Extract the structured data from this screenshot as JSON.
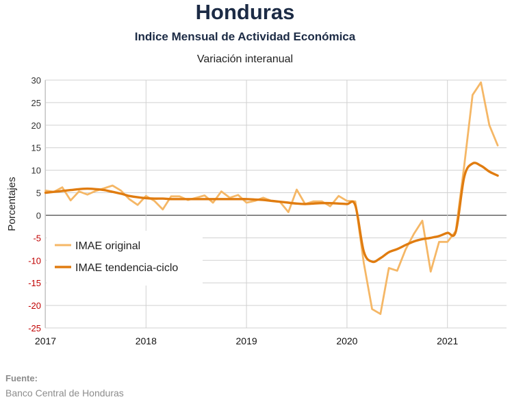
{
  "header": {
    "title": "Honduras",
    "subtitle": "Indice Mensual de  Actividad Económica",
    "subtitle2": "Variación interanual"
  },
  "footer": {
    "source_label": "Fuente:",
    "source_value": "Banco Central de Honduras"
  },
  "colors": {
    "original": "#f5b766",
    "trend": "#e07c10",
    "grid": "#d0d0d0",
    "zero_line": "#555555",
    "negative_tick": "#c00000"
  },
  "chart_data": {
    "type": "line",
    "title": "Honduras",
    "subtitle": "Indice Mensual de  Actividad Económica",
    "subtitle2": "Variación interanual",
    "xlabel": "",
    "ylabel": "Porcentajes",
    "ylim": [
      -25,
      30
    ],
    "yticks": [
      -25,
      -20,
      -15,
      -10,
      -5,
      0,
      5,
      10,
      15,
      20,
      25,
      30
    ],
    "xticks": [
      "2017",
      "2018",
      "2019",
      "2020",
      "2021"
    ],
    "grid": true,
    "legend_position": "left-center",
    "x_start": "2017-01",
    "x_end": "2021-07",
    "series": [
      {
        "name": "IMAE original",
        "values": [
          5.5,
          5.2,
          6.2,
          3.3,
          5.3,
          4.6,
          5.4,
          6.0,
          6.6,
          5.5,
          3.6,
          2.3,
          4.3,
          3.2,
          1.3,
          4.2,
          4.2,
          3.4,
          3.9,
          4.4,
          2.8,
          5.3,
          3.9,
          4.5,
          2.8,
          3.2,
          3.9,
          3.2,
          3.0,
          0.7,
          5.7,
          2.5,
          3.1,
          3.1,
          2.0,
          4.3,
          3.2,
          3.1,
          -10.5,
          -20.8,
          -21.9,
          -11.7,
          -12.3,
          -7.6,
          -4.1,
          -1.2,
          -12.5,
          -5.9,
          -5.9,
          -3.5,
          11.0,
          26.7,
          29.5,
          20.0,
          15.5
        ]
      },
      {
        "name": "IMAE tendencia-ciclo",
        "values": [
          5.0,
          5.2,
          5.4,
          5.6,
          5.8,
          5.9,
          5.8,
          5.6,
          5.2,
          4.8,
          4.3,
          4.0,
          3.8,
          3.7,
          3.7,
          3.6,
          3.6,
          3.6,
          3.6,
          3.6,
          3.6,
          3.6,
          3.6,
          3.6,
          3.6,
          3.5,
          3.4,
          3.2,
          3.0,
          2.8,
          2.6,
          2.5,
          2.6,
          2.7,
          2.7,
          2.6,
          2.5,
          2.2,
          -8.0,
          -10.3,
          -9.5,
          -8.2,
          -7.5,
          -6.6,
          -5.8,
          -5.3,
          -5.0,
          -4.6,
          -3.9,
          -3.6,
          8.5,
          11.5,
          11.0,
          9.7,
          8.8
        ]
      }
    ]
  }
}
